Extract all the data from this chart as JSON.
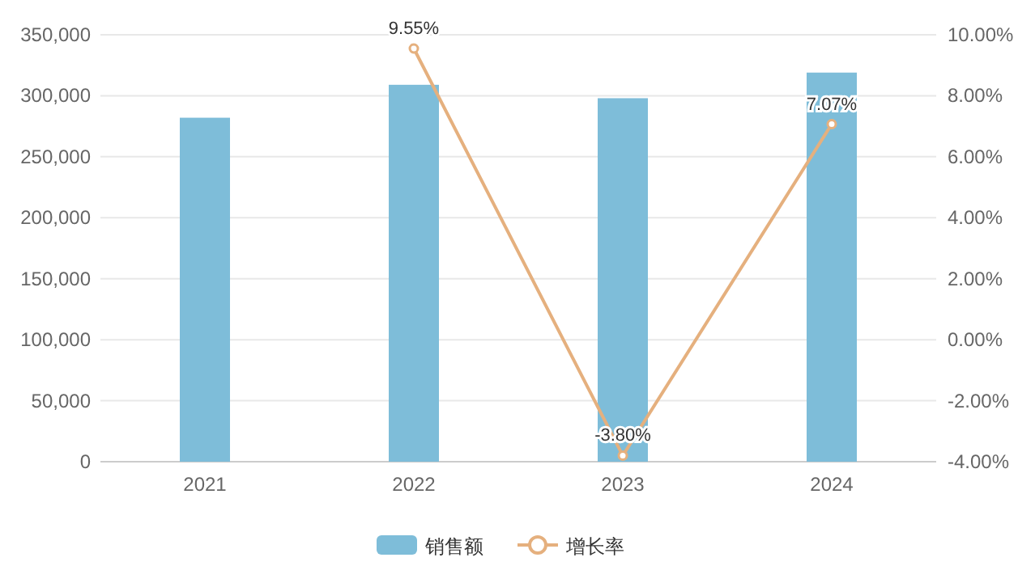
{
  "chart_data": {
    "type": "bar",
    "categories": [
      "2021",
      "2022",
      "2023",
      "2024"
    ],
    "series": [
      {
        "name": "销售额",
        "color": "#7ebdd9",
        "values": [
          282000,
          309000,
          298000,
          319000
        ]
      },
      {
        "name": "增长率",
        "type": "line",
        "axis": "y2",
        "color": "#e5b07e",
        "marker": "circle",
        "values": [
          null,
          9.55,
          -3.8,
          7.07
        ],
        "value_labels": [
          null,
          "9.55%",
          "-3.80%",
          "7.07%"
        ]
      }
    ],
    "ylim": [
      0,
      350000
    ],
    "yticks": [
      0,
      {
        "value": 50000,
        "label": "50,000"
      },
      {
        "value": 100000,
        "label": "100,000"
      },
      {
        "value": 150000,
        "label": "150,000"
      },
      {
        "value": 200000,
        "label": "200,000"
      },
      {
        "value": 250000,
        "label": "250,000"
      },
      {
        "value": 300000,
        "label": "300,000"
      },
      {
        "value": 350000,
        "label": "350,000"
      }
    ],
    "y2lim": [
      -4,
      10
    ],
    "y2ticks": [
      {
        "value": -4,
        "label": "-4.00%"
      },
      {
        "value": -2,
        "label": "-2.00%"
      },
      {
        "value": 0,
        "label": "0.00%"
      },
      {
        "value": 2,
        "label": "2.00%"
      },
      {
        "value": 4,
        "label": "4.00%"
      },
      {
        "value": 6,
        "label": "6.00%"
      },
      {
        "value": 8,
        "label": "8.00%"
      },
      {
        "value": 10,
        "label": "10.00%"
      }
    ],
    "grid": "y",
    "legend": "bottom"
  }
}
